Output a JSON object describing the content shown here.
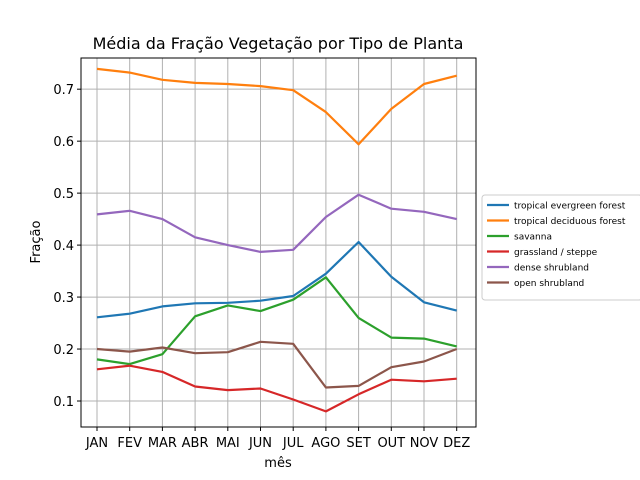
{
  "chart_data": {
    "type": "line",
    "title": "Média da Fração Vegetação por Tipo de Planta",
    "xlabel": "mês",
    "ylabel": "Fração",
    "categories": [
      "JAN",
      "FEV",
      "MAR",
      "ABR",
      "MAI",
      "JUN",
      "JUL",
      "AGO",
      "SET",
      "OUT",
      "NOV",
      "DEZ"
    ],
    "ylim": [
      0.05,
      0.76
    ],
    "yticks": [
      0.1,
      0.2,
      0.3,
      0.4,
      0.5,
      0.6,
      0.7
    ],
    "ytick_labels": [
      "0.1",
      "0.2",
      "0.3",
      "0.4",
      "0.5",
      "0.6",
      "0.7"
    ],
    "grid": true,
    "legend_position": "outside-right",
    "series": [
      {
        "name": "tropical evergreen forest",
        "color": "#1f77b4",
        "values": [
          0.261,
          0.268,
          0.282,
          0.288,
          0.289,
          0.293,
          0.302,
          0.345,
          0.406,
          0.339,
          0.29,
          0.274
        ]
      },
      {
        "name": "tropical deciduous forest",
        "color": "#ff7f0e",
        "values": [
          0.739,
          0.732,
          0.718,
          0.712,
          0.71,
          0.706,
          0.698,
          0.656,
          0.594,
          0.662,
          0.71,
          0.726
        ]
      },
      {
        "name": "savanna",
        "color": "#2ca02c",
        "values": [
          0.18,
          0.171,
          0.19,
          0.263,
          0.284,
          0.273,
          0.295,
          0.338,
          0.26,
          0.222,
          0.22,
          0.205
        ]
      },
      {
        "name": "grassland / steppe",
        "color": "#d62728",
        "values": [
          0.161,
          0.168,
          0.156,
          0.128,
          0.121,
          0.124,
          0.103,
          0.08,
          0.113,
          0.141,
          0.138,
          0.143
        ]
      },
      {
        "name": "dense shrubland",
        "color": "#9467bd",
        "values": [
          0.459,
          0.466,
          0.45,
          0.415,
          0.4,
          0.387,
          0.391,
          0.454,
          0.497,
          0.47,
          0.464,
          0.45
        ]
      },
      {
        "name": "open shrubland",
        "color": "#8c564b",
        "values": [
          0.2,
          0.195,
          0.203,
          0.192,
          0.194,
          0.214,
          0.21,
          0.126,
          0.129,
          0.165,
          0.176,
          0.2
        ]
      }
    ]
  }
}
